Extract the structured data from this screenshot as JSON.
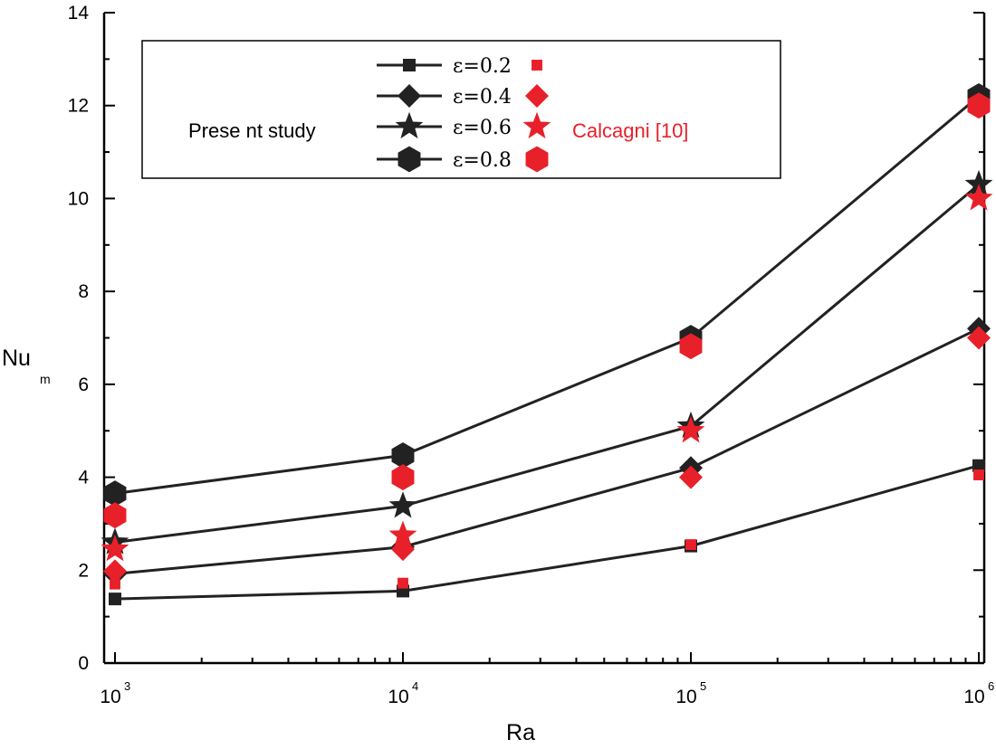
{
  "chart_data": {
    "type": "line",
    "title": "",
    "xlabel": "Ra",
    "ylabel": "Nu",
    "ylabel_subscript": "m",
    "x_scale": "log",
    "xlim": [
      1000,
      1000000
    ],
    "ylim": [
      0,
      14
    ],
    "yticks": [
      0,
      2,
      4,
      6,
      8,
      10,
      12,
      14
    ],
    "y_tick_labels": [
      "0",
      "2",
      "4",
      "6",
      "8",
      "10",
      "12",
      "14"
    ],
    "xticks": [
      1000,
      10000,
      100000,
      1000000
    ],
    "x_tick_labels": [
      {
        "base": "10",
        "exp": "3"
      },
      {
        "base": "10",
        "exp": "4"
      },
      {
        "base": "10",
        "exp": "5"
      },
      {
        "base": "10",
        "exp": "6"
      }
    ],
    "x": [
      1000,
      10000,
      100000,
      1000000
    ],
    "series_color": "#222222",
    "reference_color": "#e8202a",
    "legend": {
      "group_label": "Prese nt study",
      "reference_label": "Calcagni [10]",
      "placement": "top-left"
    },
    "series": [
      {
        "name": "ε=0.2",
        "marker": "square",
        "values": [
          1.38,
          1.55,
          2.52,
          4.25
        ],
        "reference_values": [
          1.7,
          1.72,
          2.55,
          4.05
        ]
      },
      {
        "name": "ε=0.4",
        "marker": "diamond",
        "values": [
          1.92,
          2.5,
          4.2,
          7.2
        ],
        "reference_values": [
          1.98,
          2.45,
          4.0,
          7.0
        ]
      },
      {
        "name": "ε=0.6",
        "marker": "star",
        "values": [
          2.6,
          3.38,
          5.1,
          10.3
        ],
        "reference_values": [
          2.45,
          2.75,
          5.0,
          10.0
        ]
      },
      {
        "name": "ε=0.8",
        "marker": "hexagon",
        "values": [
          3.65,
          4.47,
          7.0,
          12.2
        ],
        "reference_values": [
          3.18,
          4.0,
          6.82,
          12.0
        ]
      }
    ]
  }
}
